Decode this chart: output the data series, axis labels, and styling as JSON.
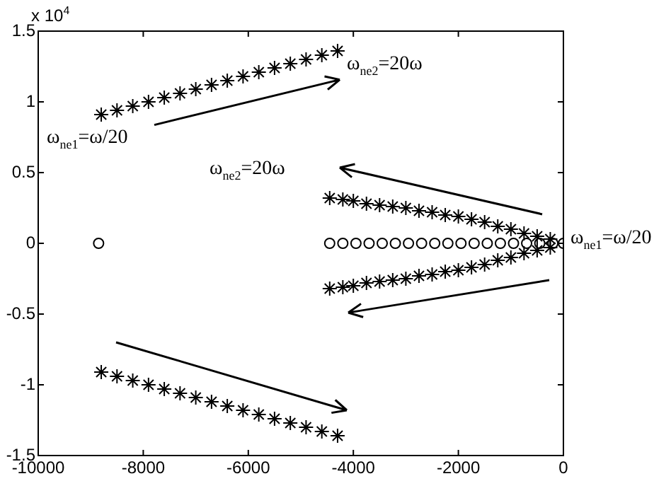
{
  "chart_data": {
    "type": "scatter",
    "xlim": [
      -10000,
      0
    ],
    "xticks": [
      -10000,
      -8000,
      -6000,
      -4000,
      -2000,
      0
    ],
    "ylim": [
      -1.5,
      1.5
    ],
    "yticks": [
      -1.5,
      -1,
      -0.5,
      0,
      0.5,
      1,
      1.5
    ],
    "grid": false,
    "legend": false,
    "annotations": [
      "x 10$^{4}$",
      "ω$_{ne2}$=20ω",
      "ω$_{ne1}$=ω/20",
      "ω$_{ne2}$=20ω",
      "ω$_{ne1}$=ω/20"
    ],
    "series": [
      {
        "color": "#000000",
        "marker": "cross",
        "x": [
          -8800,
          -8500,
          -8200,
          -7900,
          -7600,
          -7300,
          -7000,
          -6700,
          -6400,
          -6100,
          -5800,
          -5500,
          -5200,
          -4900,
          -4600,
          -4300
        ],
        "values": [
          0.91,
          0.94,
          0.97,
          1.0,
          1.03,
          1.06,
          1.09,
          1.12,
          1.15,
          1.18,
          1.21,
          1.24,
          1.27,
          1.3,
          1.33,
          1.36
        ]
      },
      {
        "color": "#000000",
        "marker": "cross",
        "x": [
          -8800,
          -8500,
          -8200,
          -7900,
          -7600,
          -7300,
          -7000,
          -6700,
          -6400,
          -6100,
          -5800,
          -5500,
          -5200,
          -4900,
          -4600,
          -4300
        ],
        "values": [
          -0.91,
          -0.94,
          -0.97,
          -1.0,
          -1.03,
          -1.06,
          -1.09,
          -1.12,
          -1.15,
          -1.18,
          -1.21,
          -1.24,
          -1.27,
          -1.3,
          -1.33,
          -1.36
        ]
      },
      {
        "color": "#000000",
        "marker": "cross",
        "x": [
          -4450,
          -4200,
          -4000,
          -3750,
          -3500,
          -3250,
          -3000,
          -2750,
          -2500,
          -2250,
          -2000,
          -1750,
          -1500,
          -1250,
          -1000,
          -750,
          -500,
          -250
        ],
        "values": [
          0.32,
          0.31,
          0.3,
          0.28,
          0.27,
          0.26,
          0.25,
          0.23,
          0.22,
          0.2,
          0.19,
          0.17,
          0.15,
          0.12,
          0.1,
          0.07,
          0.05,
          0.03
        ]
      },
      {
        "color": "#000000",
        "marker": "cross",
        "x": [
          -4450,
          -4200,
          -4000,
          -3750,
          -3500,
          -3250,
          -3000,
          -2750,
          -2500,
          -2250,
          -2000,
          -1750,
          -1500,
          -1250,
          -1000,
          -750,
          -500,
          -250
        ],
        "values": [
          -0.32,
          -0.31,
          -0.3,
          -0.28,
          -0.27,
          -0.26,
          -0.25,
          -0.23,
          -0.22,
          -0.2,
          -0.19,
          -0.17,
          -0.15,
          -0.12,
          -0.1,
          -0.07,
          -0.05,
          -0.03
        ]
      },
      {
        "color": "#000000",
        "marker": "circle",
        "x": [
          -8850,
          -4450,
          -4200,
          -3950,
          -3700,
          -3450,
          -3200,
          -2950,
          -2700,
          -2450,
          -2200,
          -1950,
          -1700,
          -1450,
          -1200,
          -950,
          -700,
          -450,
          -200,
          0
        ],
        "values": [
          0,
          0,
          0,
          0,
          0,
          0,
          0,
          0,
          0,
          0,
          0,
          0,
          0,
          0,
          0,
          0,
          0,
          0,
          0,
          0
        ]
      }
    ]
  }
}
